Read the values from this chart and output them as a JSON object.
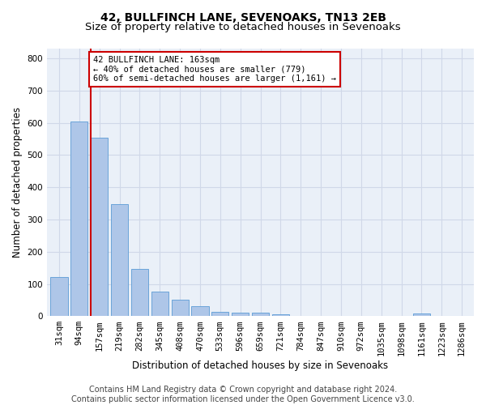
{
  "title": "42, BULLFINCH LANE, SEVENOAKS, TN13 2EB",
  "subtitle": "Size of property relative to detached houses in Sevenoaks",
  "xlabel": "Distribution of detached houses by size in Sevenoaks",
  "ylabel": "Number of detached properties",
  "bar_color": "#aec6e8",
  "bar_edge_color": "#5b9bd5",
  "grid_color": "#d0d8e8",
  "background_color": "#eaf0f8",
  "annotation_box_color": "#cc0000",
  "annotation_line_color": "#cc0000",
  "annotation_line1": "42 BULLFINCH LANE: 163sqm",
  "annotation_line2": "← 40% of detached houses are smaller (779)",
  "annotation_line3": "60% of semi-detached houses are larger (1,161) →",
  "property_size_sqm": 163,
  "categories": [
    "31sqm",
    "94sqm",
    "157sqm",
    "219sqm",
    "282sqm",
    "345sqm",
    "408sqm",
    "470sqm",
    "533sqm",
    "596sqm",
    "659sqm",
    "721sqm",
    "784sqm",
    "847sqm",
    "910sqm",
    "972sqm",
    "1035sqm",
    "1098sqm",
    "1161sqm",
    "1223sqm",
    "1286sqm"
  ],
  "values": [
    122,
    603,
    553,
    348,
    147,
    77,
    52,
    30,
    14,
    12,
    12,
    7,
    0,
    0,
    0,
    0,
    0,
    0,
    8,
    0,
    0
  ],
  "ylim": [
    0,
    830
  ],
  "yticks": [
    0,
    100,
    200,
    300,
    400,
    500,
    600,
    700,
    800
  ],
  "property_bar_index": 2,
  "footer_text": "Contains HM Land Registry data © Crown copyright and database right 2024.\nContains public sector information licensed under the Open Government Licence v3.0.",
  "title_fontsize": 10,
  "subtitle_fontsize": 9.5,
  "label_fontsize": 8.5,
  "tick_fontsize": 7.5,
  "footer_fontsize": 7
}
